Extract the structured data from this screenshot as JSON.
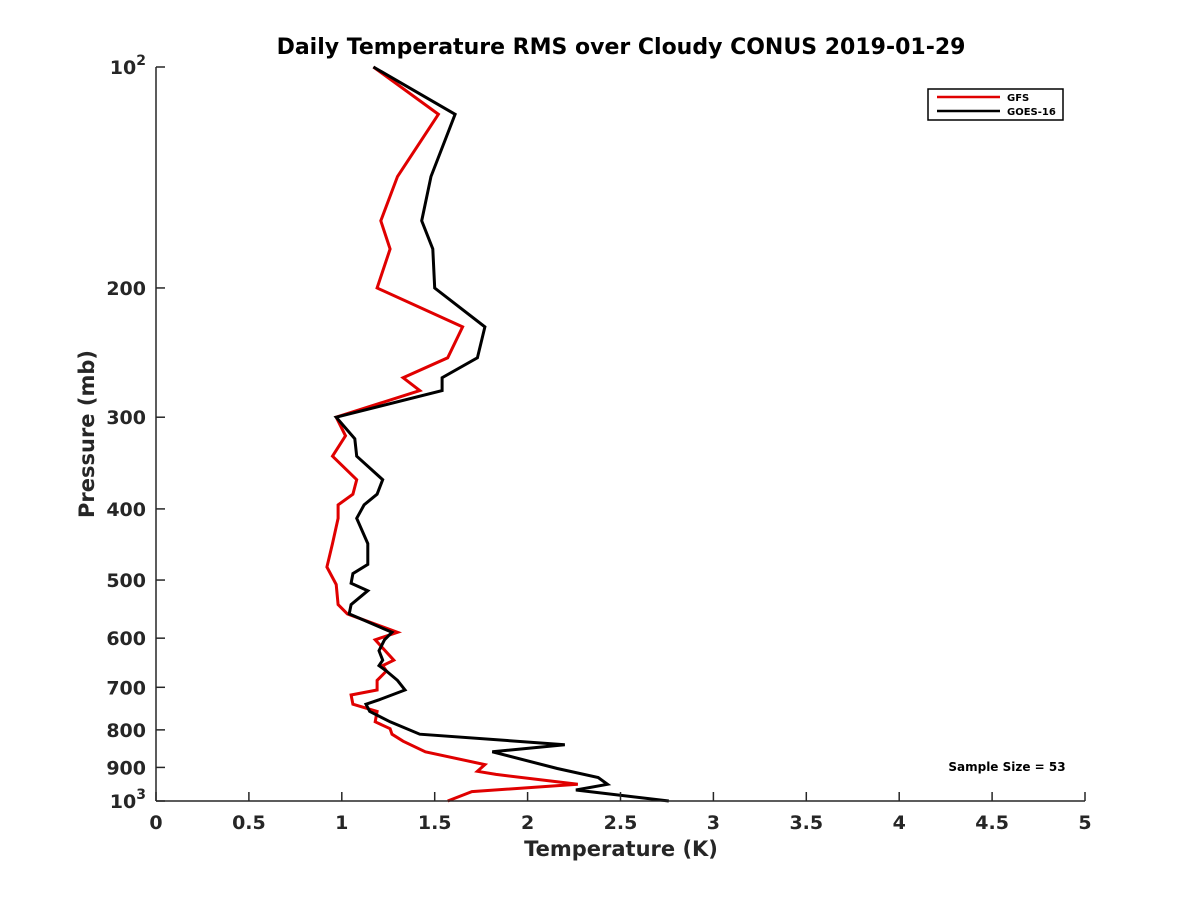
{
  "chart_data": {
    "type": "line",
    "title": "Daily Temperature RMS over Cloudy CONUS 2019-01-29",
    "xlabel": "Temperature (K)",
    "ylabel": "Pressure (mb)",
    "xlim": [
      0,
      5
    ],
    "ylim": [
      100,
      1000
    ],
    "y_scale": "log",
    "y_reversed": true,
    "grid": false,
    "legend_position": "top-right",
    "x_ticks": [
      0,
      0.5,
      1,
      1.5,
      2,
      2.5,
      3,
      3.5,
      4,
      4.5,
      5
    ],
    "x_tick_labels": [
      "0",
      "0.5",
      "1",
      "1.5",
      "2",
      "2.5",
      "3",
      "3.5",
      "4",
      "4.5",
      "5"
    ],
    "y_ticks": [
      100,
      200,
      300,
      400,
      500,
      600,
      700,
      800,
      900,
      1000
    ],
    "y_tick_labels": [
      {
        "base": "10",
        "sup": "2"
      },
      {
        "base": "200",
        "sup": ""
      },
      {
        "base": "300",
        "sup": ""
      },
      {
        "base": "400",
        "sup": ""
      },
      {
        "base": "500",
        "sup": ""
      },
      {
        "base": "600",
        "sup": ""
      },
      {
        "base": "700",
        "sup": ""
      },
      {
        "base": "800",
        "sup": ""
      },
      {
        "base": "900",
        "sup": ""
      },
      {
        "base": "10",
        "sup": "3"
      }
    ],
    "series": [
      {
        "name": "GFS",
        "color": "#e00000",
        "x": [
          1.17,
          1.52,
          1.3,
          1.21,
          1.26,
          1.19,
          1.65,
          1.57,
          1.33,
          1.42,
          0.97,
          1.02,
          0.95,
          1.08,
          1.06,
          0.98,
          0.98,
          0.95,
          0.92,
          0.97,
          0.98,
          1.03,
          1.3,
          1.18,
          1.28,
          1.22,
          1.24,
          1.19,
          1.19,
          1.05,
          1.06,
          1.19,
          1.18,
          1.26,
          1.27,
          1.33,
          1.45,
          1.77,
          1.73,
          1.83,
          2.27,
          1.7,
          1.57
        ],
        "y": [
          100,
          116,
          141,
          162,
          177,
          200,
          226,
          249,
          265,
          276,
          300,
          318,
          339,
          365,
          382,
          395,
          412,
          446,
          480,
          507,
          540,
          556,
          589,
          603,
          643,
          654,
          665,
          685,
          706,
          717,
          738,
          755,
          780,
          797,
          811,
          829,
          857,
          892,
          911,
          920,
          949,
          971,
          1000
        ]
      },
      {
        "name": "GOES-16",
        "color": "#000000",
        "x": [
          1.17,
          1.61,
          1.48,
          1.43,
          1.49,
          1.5,
          1.77,
          1.73,
          1.54,
          1.54,
          0.97,
          1.07,
          1.08,
          1.22,
          1.19,
          1.12,
          1.08,
          1.14,
          1.14,
          1.06,
          1.05,
          1.14,
          1.05,
          1.04,
          1.27,
          1.23,
          1.2,
          1.22,
          1.2,
          1.24,
          1.3,
          1.34,
          1.2,
          1.13,
          1.15,
          1.26,
          1.42,
          2.2,
          1.81,
          2.16,
          2.38,
          2.43,
          2.26,
          2.76
        ],
        "y": [
          100,
          116,
          141,
          162,
          177,
          200,
          226,
          249,
          265,
          276,
          300,
          321,
          339,
          365,
          382,
          395,
          412,
          446,
          476,
          490,
          505,
          517,
          540,
          556,
          589,
          603,
          624,
          643,
          654,
          665,
          685,
          706,
          728,
          738,
          755,
          780,
          811,
          838,
          857,
          903,
          929,
          949,
          966,
          1000
        ]
      }
    ],
    "legend_entries": [
      "GFS",
      "GOES-16"
    ],
    "annotations": [
      "Sample Size = 53"
    ]
  }
}
